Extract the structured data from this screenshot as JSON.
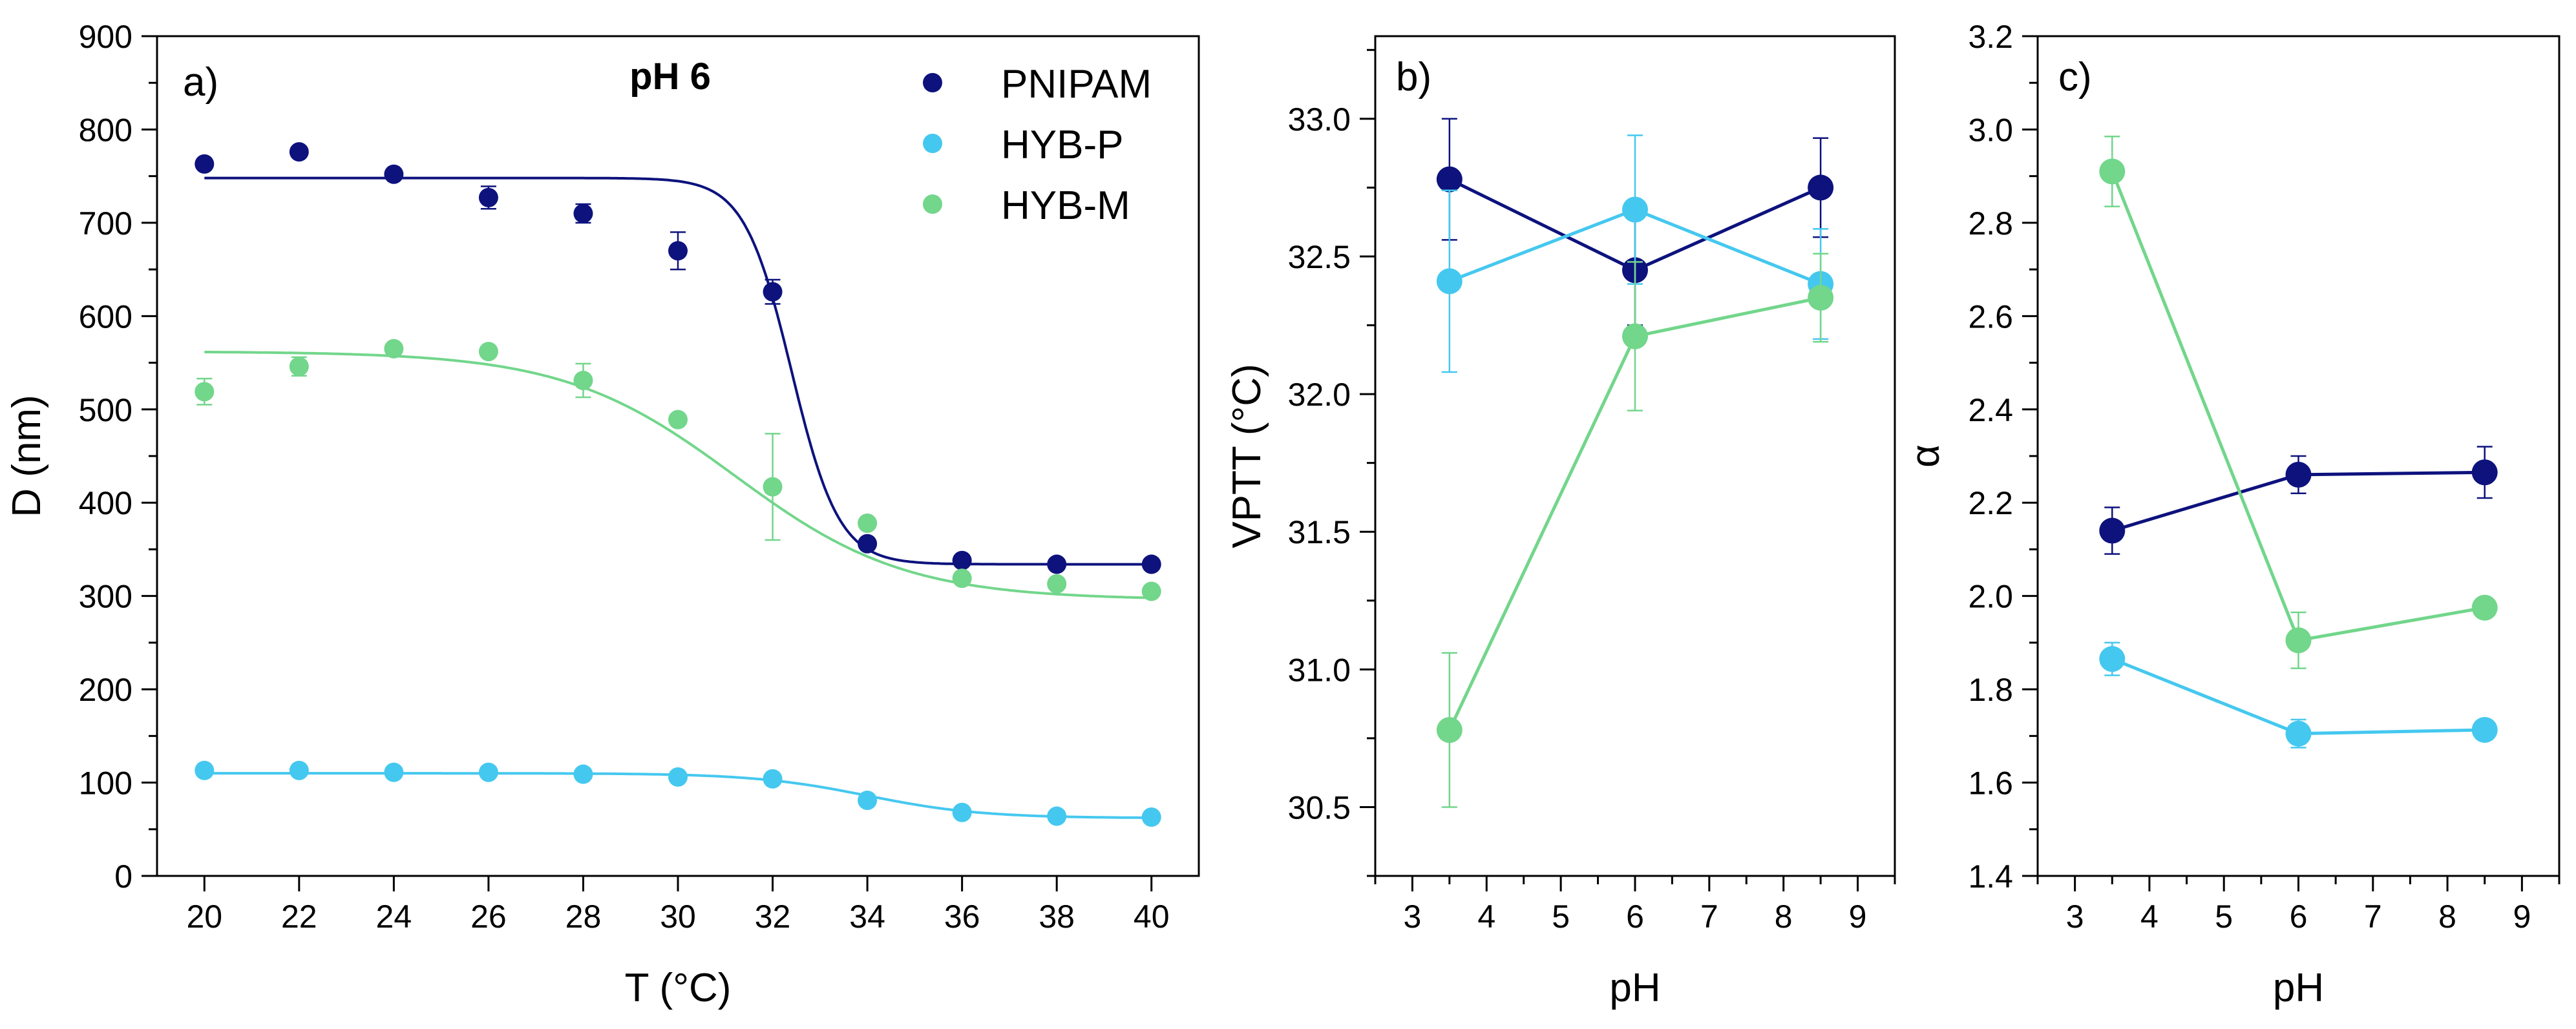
{
  "chart_data": [
    {
      "type": "scatter",
      "panel_label": "a)",
      "annotation": "pH 6",
      "xlabel": "T (°C)",
      "ylabel": "D (nm)",
      "xlim": [
        19,
        41
      ],
      "ylim": [
        0,
        900
      ],
      "xticks": [
        20,
        22,
        24,
        26,
        28,
        30,
        32,
        34,
        36,
        38,
        40
      ],
      "yticks": [
        0,
        100,
        200,
        300,
        400,
        500,
        600,
        700,
        800,
        900
      ],
      "legend": {
        "position": "top-right",
        "entries": [
          "PNIPAM",
          "HYB-P",
          "HYB-M"
        ]
      },
      "x": [
        20,
        22,
        24,
        26,
        28,
        30,
        32,
        34,
        36,
        38,
        40
      ],
      "series": [
        {
          "name": "PNIPAM",
          "color": "#0d127d",
          "values": [
            763,
            776,
            752,
            727,
            710,
            670,
            626,
            356,
            338,
            334,
            334
          ],
          "errors": [
            0,
            0,
            0,
            12,
            10,
            20,
            13,
            0,
            0,
            0,
            0
          ],
          "fit": {
            "top": 748,
            "bottom": 334,
            "center": 32.4,
            "width": 0.5
          }
        },
        {
          "name": "HYB-P",
          "color": "#45c8ef",
          "values": [
            113,
            113,
            111,
            111,
            109,
            106,
            104,
            81,
            68,
            64,
            63
          ],
          "errors": [
            0,
            0,
            0,
            0,
            0,
            0,
            0,
            0,
            0,
            0,
            0
          ],
          "fit": {
            "top": 110,
            "bottom": 62,
            "center": 34,
            "width": 1.2
          }
        },
        {
          "name": "HYB-M",
          "color": "#72d68b",
          "values": [
            519,
            546,
            565,
            562,
            531,
            489,
            417,
            378,
            319,
            313,
            305
          ],
          "errors": [
            14,
            10,
            0,
            0,
            18,
            0,
            57,
            0,
            0,
            0,
            0
          ],
          "fit": {
            "top": 562,
            "bottom": 296,
            "center": 31.2,
            "width": 1.8
          }
        }
      ]
    },
    {
      "type": "line",
      "panel_label": "b)",
      "xlabel": "pH",
      "ylabel": "VPTT (°C)",
      "xlim": [
        2.5,
        9.5
      ],
      "ylim": [
        30.25,
        33.3
      ],
      "xticks": [
        3,
        4,
        5,
        6,
        7,
        8,
        9
      ],
      "yticks": [
        30.5,
        31.0,
        31.5,
        32.0,
        32.5,
        33.0
      ],
      "x": [
        3.5,
        6,
        8.5
      ],
      "series": [
        {
          "name": "PNIPAM",
          "color": "#0d127d",
          "values": [
            32.78,
            32.45,
            32.75
          ],
          "errors": [
            0.22,
            0.2,
            0.18
          ]
        },
        {
          "name": "HYB-P",
          "color": "#45c8ef",
          "values": [
            32.41,
            32.67,
            32.4
          ],
          "errors": [
            0.33,
            0.27,
            0.2
          ]
        },
        {
          "name": "HYB-M",
          "color": "#72d68b",
          "values": [
            30.78,
            32.21,
            32.35
          ],
          "errors": [
            0.28,
            0.27,
            0.16
          ]
        }
      ]
    },
    {
      "type": "line",
      "panel_label": "c)",
      "xlabel": "pH",
      "ylabel": "α",
      "xlim": [
        2.5,
        9.5
      ],
      "ylim": [
        1.4,
        3.2
      ],
      "xticks": [
        3,
        4,
        5,
        6,
        7,
        8,
        9
      ],
      "yticks": [
        1.4,
        1.6,
        1.8,
        2.0,
        2.2,
        2.4,
        2.6,
        2.8,
        3.0,
        3.2
      ],
      "x": [
        3.5,
        6,
        8.5
      ],
      "series": [
        {
          "name": "PNIPAM",
          "color": "#0d127d",
          "values": [
            2.14,
            2.26,
            2.265
          ],
          "errors": [
            0.05,
            0.04,
            0.055
          ]
        },
        {
          "name": "HYB-P",
          "color": "#45c8ef",
          "values": [
            1.865,
            1.705,
            1.713
          ],
          "errors": [
            0.035,
            0.03,
            0.02
          ]
        },
        {
          "name": "HYB-M",
          "color": "#72d68b",
          "values": [
            2.91,
            1.905,
            1.975
          ],
          "errors": [
            0.075,
            0.06,
            0.02
          ]
        }
      ]
    }
  ]
}
